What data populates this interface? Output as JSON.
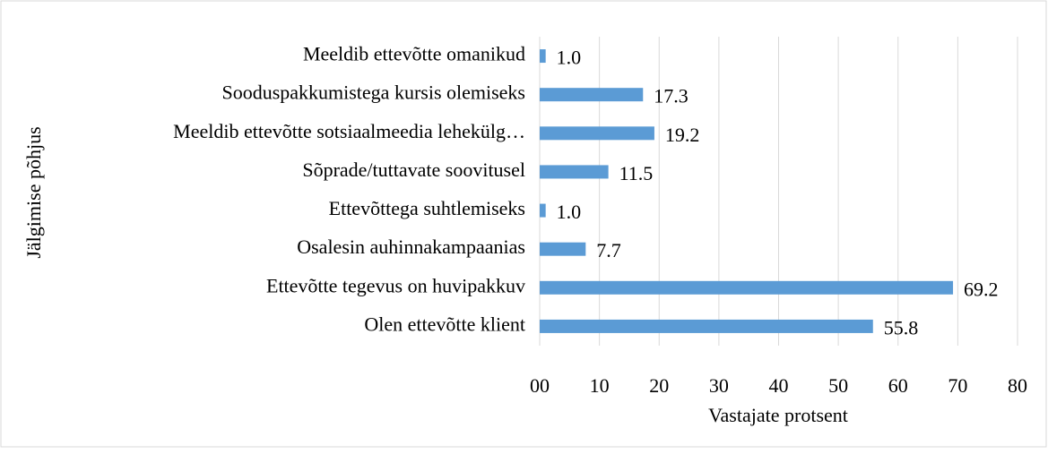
{
  "chart_data": {
    "type": "barh",
    "categories": [
      "Meeldib ettevõtte omanikud",
      "Sooduspakkumistega kursis olemiseks",
      "Meeldib ettevõtte sotsiaalmeedia lehekülg…",
      "Sõprade/tuttavate soovitusel",
      "Ettevõttega suhtlemiseks",
      "Osalesin auhinnakampaanias",
      "Ettevõtte tegevus on huvipakkuv",
      "Olen ettevõtte klient"
    ],
    "values": [
      1.0,
      17.3,
      19.2,
      11.5,
      1.0,
      7.7,
      69.2,
      55.8
    ],
    "value_labels": [
      "1.0",
      "17.3",
      "19.2",
      "11.5",
      "1.0",
      "7.7",
      "69.2",
      "55.8"
    ],
    "color": "#5b9bd5",
    "xlabel": "Vastajate protsent",
    "ylabel": "Jälgimise põhjus",
    "xlim": [
      0,
      80
    ],
    "xticks": [
      {
        "value": 0,
        "label": "00"
      },
      10,
      20,
      30,
      40,
      50,
      60,
      70,
      80
    ],
    "grid": true
  }
}
